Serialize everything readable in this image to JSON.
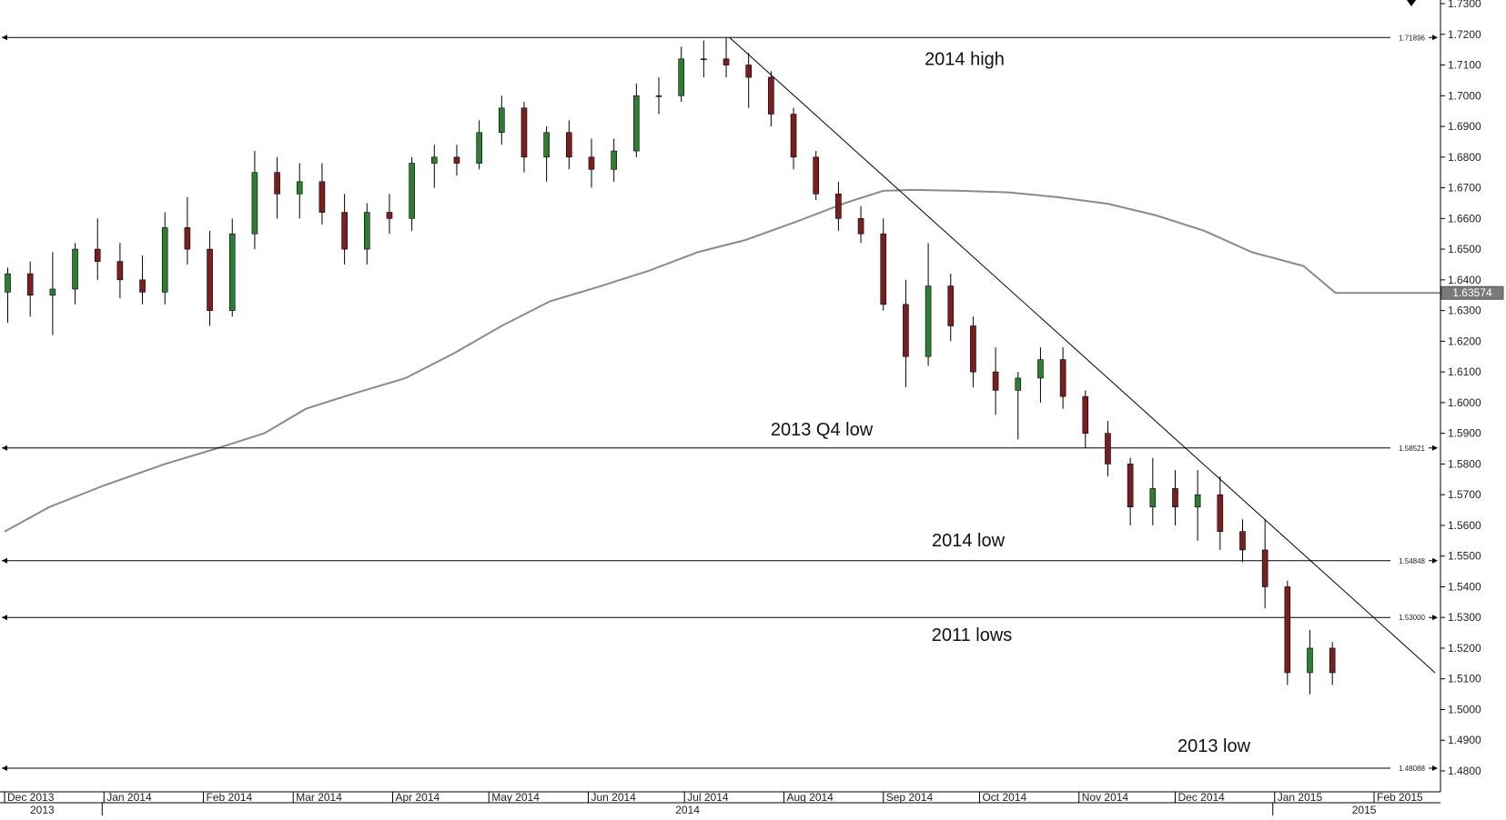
{
  "chart_data": {
    "type": "candlestick",
    "title": "",
    "y_axis": {
      "min": 1.472,
      "max": 1.73,
      "side": "right",
      "tick_labels": [
        "1.4800",
        "1.4900",
        "1.5000",
        "1.5100",
        "1.5200",
        "1.5300",
        "1.5400",
        "1.5500",
        "1.5600",
        "1.5700",
        "1.5800",
        "1.5900",
        "1.6000",
        "1.6100",
        "1.6200",
        "1.6300",
        "1.6400",
        "1.6500",
        "1.6600",
        "1.6700",
        "1.6800",
        "1.6900",
        "1.7000",
        "1.7100",
        "1.7200",
        "1.7300"
      ]
    },
    "x_axis": {
      "months": [
        "Dec 2013",
        "Jan 2014",
        "Feb 2014",
        "Mar 2014",
        "Apr 2014",
        "May 2014",
        "Jun 2014",
        "Jul 2014",
        "Aug 2014",
        "Sep 2014",
        "Oct 2014",
        "Nov 2014",
        "Dec 2014",
        "Jan 2015",
        "Feb 2015"
      ],
      "years": [
        "2013",
        "2014",
        "2015"
      ]
    },
    "current_price_label": "1.63574",
    "horizontal_levels": [
      {
        "name": "2014 high",
        "value": 1.71896,
        "tag": "1.71896"
      },
      {
        "name": "2013 Q4 low",
        "value": 1.58521,
        "tag": "1.58521"
      },
      {
        "name": "2014 low",
        "value": 1.54848,
        "tag": "1.54848"
      },
      {
        "name": "2011 lows",
        "value": 1.53,
        "tag": "1.53000"
      },
      {
        "name": "2013 low",
        "value": 1.48088,
        "tag": "1.48088"
      }
    ],
    "trendline": {
      "from": [
        "2014-07-15",
        1.719
      ],
      "to": [
        "2015-02-20",
        1.512
      ]
    },
    "moving_average": [
      [
        "2013-12-01",
        1.558
      ],
      [
        "2013-12-15",
        1.566
      ],
      [
        "2014-01-01",
        1.573
      ],
      [
        "2014-01-20",
        1.58
      ],
      [
        "2014-02-05",
        1.585
      ],
      [
        "2014-02-20",
        1.59
      ],
      [
        "2014-03-05",
        1.598
      ],
      [
        "2014-03-20",
        1.603
      ],
      [
        "2014-04-05",
        1.608
      ],
      [
        "2014-04-20",
        1.616
      ],
      [
        "2014-05-05",
        1.625
      ],
      [
        "2014-05-20",
        1.633
      ],
      [
        "2014-06-05",
        1.638
      ],
      [
        "2014-06-20",
        1.643
      ],
      [
        "2014-07-05",
        1.649
      ],
      [
        "2014-07-20",
        1.653
      ],
      [
        "2014-08-05",
        1.659
      ],
      [
        "2014-08-20",
        1.665
      ],
      [
        "2014-09-01",
        1.669
      ],
      [
        "2014-09-10",
        1.6693
      ],
      [
        "2014-09-25",
        1.669
      ],
      [
        "2014-10-10",
        1.6685
      ],
      [
        "2014-10-25",
        1.667
      ],
      [
        "2014-11-10",
        1.6648
      ],
      [
        "2014-11-25",
        1.661
      ],
      [
        "2014-12-10",
        1.656
      ],
      [
        "2014-12-25",
        1.649
      ],
      [
        "2015-01-10",
        1.6445
      ],
      [
        "2015-01-20",
        1.63574
      ],
      [
        "2015-02-28",
        1.63574
      ]
    ],
    "ohlc": [
      [
        "2013-12-02",
        1.636,
        1.644,
        1.626,
        1.642
      ],
      [
        "2013-12-09",
        1.642,
        1.646,
        1.628,
        1.635
      ],
      [
        "2013-12-16",
        1.635,
        1.649,
        1.622,
        1.637
      ],
      [
        "2013-12-23",
        1.637,
        1.652,
        1.632,
        1.65
      ],
      [
        "2013-12-30",
        1.65,
        1.66,
        1.64,
        1.646
      ],
      [
        "2014-01-06",
        1.646,
        1.652,
        1.634,
        1.64
      ],
      [
        "2014-01-13",
        1.64,
        1.648,
        1.632,
        1.636
      ],
      [
        "2014-01-20",
        1.636,
        1.662,
        1.632,
        1.657
      ],
      [
        "2014-01-27",
        1.657,
        1.667,
        1.645,
        1.65
      ],
      [
        "2014-02-03",
        1.65,
        1.656,
        1.625,
        1.63
      ],
      [
        "2014-02-10",
        1.63,
        1.66,
        1.628,
        1.655
      ],
      [
        "2014-02-17",
        1.655,
        1.682,
        1.65,
        1.675
      ],
      [
        "2014-02-24",
        1.675,
        1.68,
        1.66,
        1.668
      ],
      [
        "2014-03-03",
        1.668,
        1.678,
        1.66,
        1.672
      ],
      [
        "2014-03-10",
        1.672,
        1.678,
        1.658,
        1.662
      ],
      [
        "2014-03-17",
        1.662,
        1.668,
        1.645,
        1.65
      ],
      [
        "2014-03-24",
        1.65,
        1.665,
        1.645,
        1.662
      ],
      [
        "2014-03-31",
        1.662,
        1.668,
        1.655,
        1.66
      ],
      [
        "2014-04-07",
        1.66,
        1.68,
        1.656,
        1.678
      ],
      [
        "2014-04-14",
        1.678,
        1.684,
        1.67,
        1.68
      ],
      [
        "2014-04-21",
        1.68,
        1.684,
        1.674,
        1.678
      ],
      [
        "2014-04-28",
        1.678,
        1.692,
        1.676,
        1.688
      ],
      [
        "2014-05-05",
        1.688,
        1.7,
        1.684,
        1.696
      ],
      [
        "2014-05-12",
        1.696,
        1.698,
        1.675,
        1.68
      ],
      [
        "2014-05-19",
        1.68,
        1.69,
        1.672,
        1.688
      ],
      [
        "2014-05-26",
        1.688,
        1.692,
        1.676,
        1.68
      ],
      [
        "2014-06-02",
        1.68,
        1.686,
        1.67,
        1.676
      ],
      [
        "2014-06-09",
        1.676,
        1.686,
        1.672,
        1.682
      ],
      [
        "2014-06-16",
        1.682,
        1.704,
        1.68,
        1.7
      ],
      [
        "2014-06-23",
        1.7,
        1.706,
        1.694,
        1.7
      ],
      [
        "2014-06-30",
        1.7,
        1.716,
        1.698,
        1.712
      ],
      [
        "2014-07-07",
        1.712,
        1.718,
        1.706,
        1.712
      ],
      [
        "2014-07-14",
        1.712,
        1.719,
        1.706,
        1.71
      ],
      [
        "2014-07-21",
        1.71,
        1.714,
        1.696,
        1.706
      ],
      [
        "2014-07-28",
        1.706,
        1.708,
        1.69,
        1.694
      ],
      [
        "2014-08-04",
        1.694,
        1.696,
        1.676,
        1.68
      ],
      [
        "2014-08-11",
        1.68,
        1.682,
        1.666,
        1.668
      ],
      [
        "2014-08-18",
        1.668,
        1.672,
        1.656,
        1.66
      ],
      [
        "2014-08-25",
        1.66,
        1.664,
        1.652,
        1.655
      ],
      [
        "2014-09-01",
        1.655,
        1.66,
        1.63,
        1.632
      ],
      [
        "2014-09-08",
        1.632,
        1.64,
        1.605,
        1.615
      ],
      [
        "2014-09-15",
        1.615,
        1.652,
        1.612,
        1.638
      ],
      [
        "2014-09-22",
        1.638,
        1.642,
        1.62,
        1.625
      ],
      [
        "2014-09-29",
        1.625,
        1.628,
        1.605,
        1.61
      ],
      [
        "2014-10-06",
        1.61,
        1.618,
        1.596,
        1.604
      ],
      [
        "2014-10-13",
        1.604,
        1.61,
        1.588,
        1.608
      ],
      [
        "2014-10-20",
        1.608,
        1.618,
        1.6,
        1.614
      ],
      [
        "2014-10-27",
        1.614,
        1.618,
        1.598,
        1.602
      ],
      [
        "2014-11-03",
        1.602,
        1.604,
        1.585,
        1.59
      ],
      [
        "2014-11-10",
        1.59,
        1.594,
        1.576,
        1.58
      ],
      [
        "2014-11-17",
        1.58,
        1.582,
        1.56,
        1.566
      ],
      [
        "2014-11-24",
        1.566,
        1.582,
        1.56,
        1.572
      ],
      [
        "2014-12-01",
        1.572,
        1.578,
        1.56,
        1.566
      ],
      [
        "2014-12-08",
        1.566,
        1.578,
        1.555,
        1.57
      ],
      [
        "2014-12-15",
        1.57,
        1.576,
        1.552,
        1.558
      ],
      [
        "2014-12-22",
        1.558,
        1.562,
        1.548,
        1.552
      ],
      [
        "2014-12-29",
        1.552,
        1.562,
        1.533,
        1.54
      ],
      [
        "2015-01-05",
        1.54,
        1.542,
        1.508,
        1.512
      ],
      [
        "2015-01-12",
        1.512,
        1.526,
        1.505,
        1.52
      ],
      [
        "2015-01-19",
        1.52,
        1.522,
        1.508,
        1.512
      ]
    ]
  }
}
